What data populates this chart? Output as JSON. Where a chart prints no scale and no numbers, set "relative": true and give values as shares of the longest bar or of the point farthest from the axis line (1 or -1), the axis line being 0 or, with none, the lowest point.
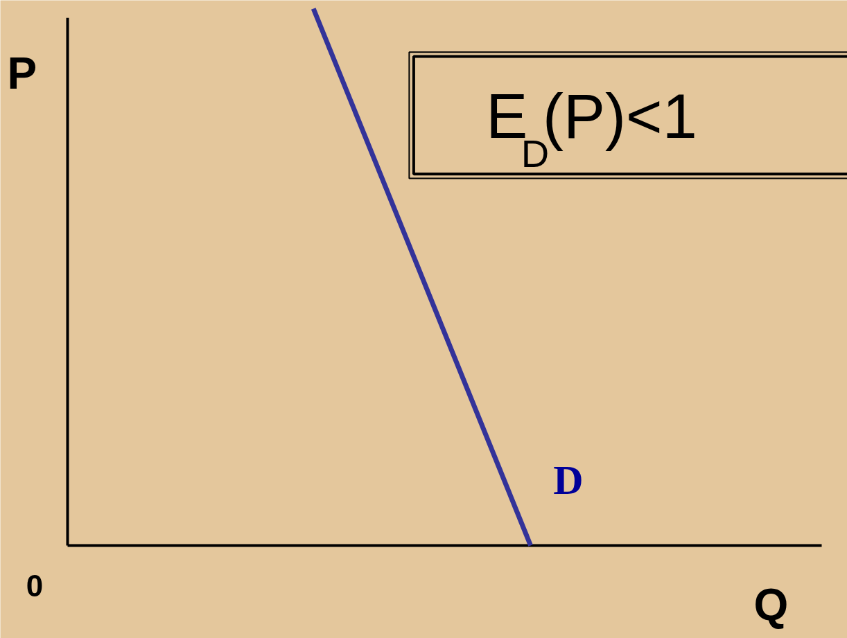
{
  "chart_data": {
    "type": "line",
    "relative": true,
    "xlabel": "Q",
    "ylabel": "P",
    "categories": [
      null,
      null
    ],
    "series": [
      {
        "name": "D",
        "color": "#333399",
        "values": [
          1,
          0
        ]
      }
    ],
    "annotations": [
      "0",
      "E$_{D}$(P)<1"
    ],
    "grid": false,
    "marker": "none",
    "line_style": "solid"
  }
}
